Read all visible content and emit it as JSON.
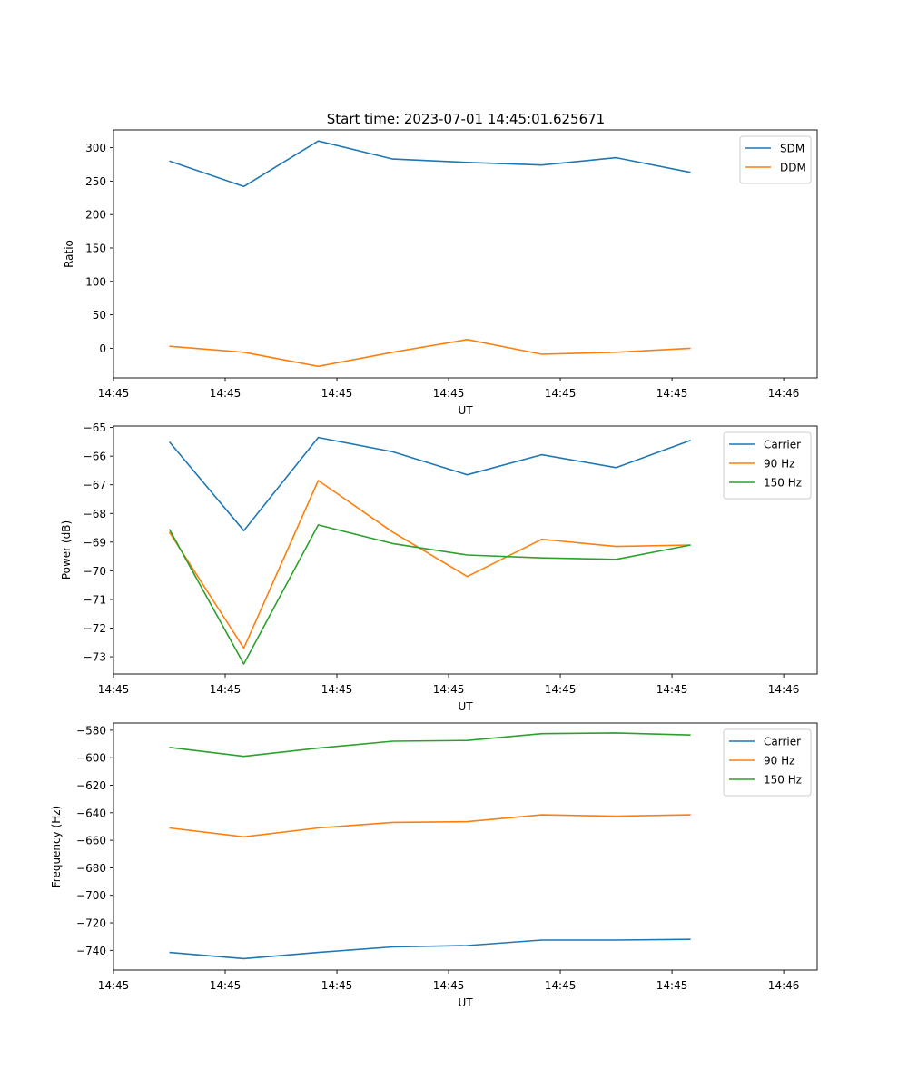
{
  "figure": {
    "title": "Start time: 2023-07-01 14:45:01.625671"
  },
  "chart_data": [
    {
      "type": "line",
      "title": "Start time: 2023-07-01 14:45:01.625671",
      "xlabel": "UT",
      "ylabel": "Ratio",
      "xlim": [
        -0.5,
        8.95
      ],
      "x_tick_values": [
        -0.5,
        1,
        2.5,
        4,
        5.5,
        7,
        8.5
      ],
      "x_tick_labels": [
        "14:45",
        "14:45",
        "14:45",
        "14:45",
        "14:45",
        "14:45",
        "14:46"
      ],
      "ylim": [
        -44.3,
        326.6
      ],
      "y_ticks": [
        0,
        50,
        100,
        150,
        200,
        250,
        300
      ],
      "legend_position": "top-right",
      "x": [
        0.25,
        1.25,
        2.25,
        3.25,
        4.25,
        5.25,
        6.25,
        7.25
      ],
      "series": [
        {
          "name": "SDM",
          "color": "#1f77b4",
          "values": [
            280,
            242,
            310,
            283,
            278,
            274,
            285,
            263
          ]
        },
        {
          "name": "DDM",
          "color": "#ff7f0e",
          "values": [
            3,
            -6,
            -27,
            -6,
            13,
            -9,
            -6,
            0
          ]
        }
      ]
    },
    {
      "type": "line",
      "title": "",
      "xlabel": "UT",
      "ylabel": "Power (dB)",
      "xlim": [
        -0.5,
        8.95
      ],
      "x_tick_values": [
        -0.5,
        1,
        2.5,
        4,
        5.5,
        7,
        8.5
      ],
      "x_tick_labels": [
        "14:45",
        "14:45",
        "14:45",
        "14:45",
        "14:45",
        "14:45",
        "14:46"
      ],
      "ylim": [
        -73.6,
        -64.95
      ],
      "y_ticks": [
        -73,
        -72,
        -71,
        -70,
        -69,
        -68,
        -67,
        -66,
        -65
      ],
      "legend_position": "top-right",
      "x": [
        0.25,
        1.25,
        2.25,
        3.25,
        4.25,
        5.25,
        6.25,
        7.25
      ],
      "series": [
        {
          "name": "Carrier",
          "color": "#1f77b4",
          "values": [
            -65.5,
            -68.6,
            -65.35,
            -65.85,
            -66.65,
            -65.95,
            -66.4,
            -65.45
          ]
        },
        {
          "name": "90 Hz",
          "color": "#ff7f0e",
          "values": [
            -68.65,
            -72.7,
            -66.85,
            -68.65,
            -70.2,
            -68.9,
            -69.15,
            -69.1
          ]
        },
        {
          "name": "150 Hz",
          "color": "#2ca02c",
          "values": [
            -68.55,
            -73.25,
            -68.4,
            -69.05,
            -69.45,
            -69.55,
            -69.6,
            -69.1
          ]
        }
      ]
    },
    {
      "type": "line",
      "title": "",
      "xlabel": "UT",
      "ylabel": "Frequency (Hz)",
      "xlim": [
        -0.5,
        8.95
      ],
      "x_tick_values": [
        -0.5,
        1,
        2.5,
        4,
        5.5,
        7,
        8.5
      ],
      "x_tick_labels": [
        "14:45",
        "14:45",
        "14:45",
        "14:45",
        "14:45",
        "14:45",
        "14:46"
      ],
      "ylim": [
        -754.3,
        -574.8
      ],
      "y_ticks": [
        -740,
        -720,
        -700,
        -680,
        -660,
        -640,
        -620,
        -600,
        -580
      ],
      "legend_position": "top-right",
      "x": [
        0.25,
        1.25,
        2.25,
        3.25,
        4.25,
        5.25,
        6.25,
        7.25
      ],
      "series": [
        {
          "name": "Carrier",
          "color": "#1f77b4",
          "values": [
            -741.5,
            -746,
            -741.5,
            -737.5,
            -736.5,
            -732.5,
            -732.5,
            -732
          ]
        },
        {
          "name": "90 Hz",
          "color": "#ff7f0e",
          "values": [
            -651,
            -657.5,
            -651,
            -647,
            -646.5,
            -641.5,
            -642.5,
            -641.5
          ]
        },
        {
          "name": "150 Hz",
          "color": "#2ca02c",
          "values": [
            -592.5,
            -599,
            -593,
            -588,
            -587.5,
            -582.5,
            -582,
            -583.5
          ]
        }
      ]
    }
  ]
}
